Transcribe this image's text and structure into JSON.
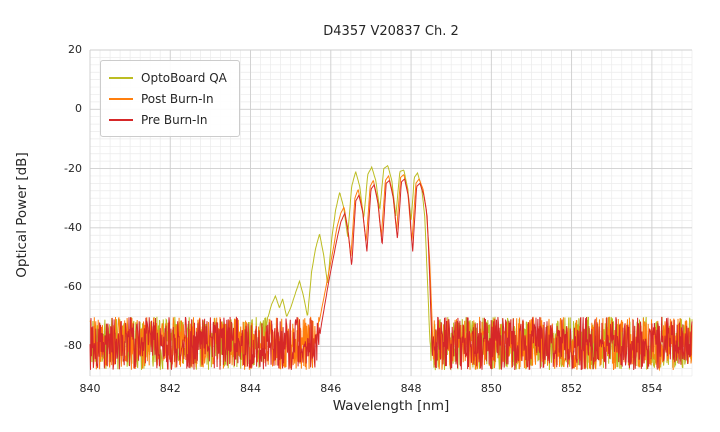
{
  "chart_data": {
    "type": "line",
    "title": "D4357 V20837 Ch. 2",
    "xlabel": "Wavelength [nm]",
    "ylabel": "Optical Power [dB]",
    "xlim": [
      840,
      855
    ],
    "ylim": [
      -90,
      20
    ],
    "xticks": [
      840,
      842,
      844,
      846,
      848,
      850,
      852,
      854
    ],
    "yticks": [
      20,
      0,
      -20,
      -40,
      -60,
      -80
    ],
    "x_minor_step": 0.25,
    "y_minor_step": 2.5,
    "grid": true,
    "legend_position": "upper left",
    "noise_floor_db": [
      -88,
      -70
    ],
    "series": [
      {
        "name": "OptoBoard QA",
        "color": "#bcbd22",
        "seed": 11,
        "signal": [
          [
            844.3,
            -84
          ],
          [
            844.42,
            -71
          ],
          [
            844.52,
            -66
          ],
          [
            844.62,
            -63
          ],
          [
            844.72,
            -67
          ],
          [
            844.8,
            -64
          ],
          [
            844.9,
            -70
          ],
          [
            845.0,
            -67
          ],
          [
            845.12,
            -62
          ],
          [
            845.22,
            -58
          ],
          [
            845.32,
            -63
          ],
          [
            845.42,
            -70
          ],
          [
            845.52,
            -55
          ],
          [
            845.62,
            -47
          ],
          [
            845.72,
            -42
          ],
          [
            845.82,
            -49
          ],
          [
            845.92,
            -59
          ],
          [
            846.02,
            -44
          ],
          [
            846.12,
            -34
          ],
          [
            846.22,
            -28
          ],
          [
            846.32,
            -33
          ],
          [
            846.42,
            -43
          ],
          [
            846.52,
            -26
          ],
          [
            846.62,
            -21
          ],
          [
            846.72,
            -26
          ],
          [
            846.82,
            -37
          ],
          [
            846.92,
            -22
          ],
          [
            847.02,
            -19.5
          ],
          [
            847.12,
            -24
          ],
          [
            847.22,
            -34
          ],
          [
            847.32,
            -20
          ],
          [
            847.42,
            -19
          ],
          [
            847.52,
            -24
          ],
          [
            847.62,
            -36
          ],
          [
            847.72,
            -21
          ],
          [
            847.82,
            -20.5
          ],
          [
            847.92,
            -27
          ],
          [
            848.0,
            -38
          ],
          [
            848.08,
            -23
          ],
          [
            848.16,
            -21.5
          ],
          [
            848.26,
            -26
          ],
          [
            848.34,
            -36
          ],
          [
            848.4,
            -55
          ],
          [
            848.46,
            -75
          ],
          [
            848.5,
            -86
          ]
        ]
      },
      {
        "name": "Post Burn-In",
        "color": "#ff7f0e",
        "seed": 23,
        "signal": [
          [
            845.55,
            -85
          ],
          [
            845.65,
            -76
          ],
          [
            845.75,
            -69
          ],
          [
            845.85,
            -62
          ],
          [
            845.95,
            -55
          ],
          [
            846.05,
            -48
          ],
          [
            846.15,
            -40
          ],
          [
            846.25,
            -35
          ],
          [
            846.33,
            -33
          ],
          [
            846.42,
            -40
          ],
          [
            846.5,
            -50
          ],
          [
            846.6,
            -30
          ],
          [
            846.68,
            -27
          ],
          [
            846.78,
            -33
          ],
          [
            846.88,
            -45
          ],
          [
            846.98,
            -26
          ],
          [
            847.06,
            -24
          ],
          [
            847.16,
            -30
          ],
          [
            847.26,
            -43
          ],
          [
            847.36,
            -24
          ],
          [
            847.44,
            -22.5
          ],
          [
            847.54,
            -28
          ],
          [
            847.64,
            -41
          ],
          [
            847.74,
            -23
          ],
          [
            847.82,
            -22
          ],
          [
            847.92,
            -28
          ],
          [
            848.02,
            -45
          ],
          [
            848.12,
            -25
          ],
          [
            848.2,
            -23.5
          ],
          [
            848.3,
            -27
          ],
          [
            848.38,
            -34
          ],
          [
            848.46,
            -50
          ],
          [
            848.52,
            -70
          ],
          [
            848.56,
            -86
          ]
        ]
      },
      {
        "name": "Pre Burn-In",
        "color": "#d62728",
        "seed": 37,
        "signal": [
          [
            845.65,
            -85
          ],
          [
            845.75,
            -74
          ],
          [
            845.85,
            -66
          ],
          [
            845.95,
            -58
          ],
          [
            846.05,
            -51
          ],
          [
            846.15,
            -44
          ],
          [
            846.25,
            -38
          ],
          [
            846.35,
            -35
          ],
          [
            846.44,
            -42
          ],
          [
            846.52,
            -53
          ],
          [
            846.62,
            -31
          ],
          [
            846.7,
            -29
          ],
          [
            846.8,
            -35
          ],
          [
            846.9,
            -48
          ],
          [
            847.0,
            -27
          ],
          [
            847.08,
            -25.5
          ],
          [
            847.18,
            -32
          ],
          [
            847.28,
            -46
          ],
          [
            847.38,
            -25
          ],
          [
            847.46,
            -24
          ],
          [
            847.56,
            -30
          ],
          [
            847.66,
            -44
          ],
          [
            847.76,
            -24.5
          ],
          [
            847.84,
            -23.5
          ],
          [
            847.94,
            -30
          ],
          [
            848.04,
            -48
          ],
          [
            848.14,
            -26
          ],
          [
            848.22,
            -25
          ],
          [
            848.32,
            -29
          ],
          [
            848.4,
            -36
          ],
          [
            848.46,
            -55
          ],
          [
            848.5,
            -72
          ],
          [
            848.54,
            -86
          ]
        ]
      }
    ]
  }
}
